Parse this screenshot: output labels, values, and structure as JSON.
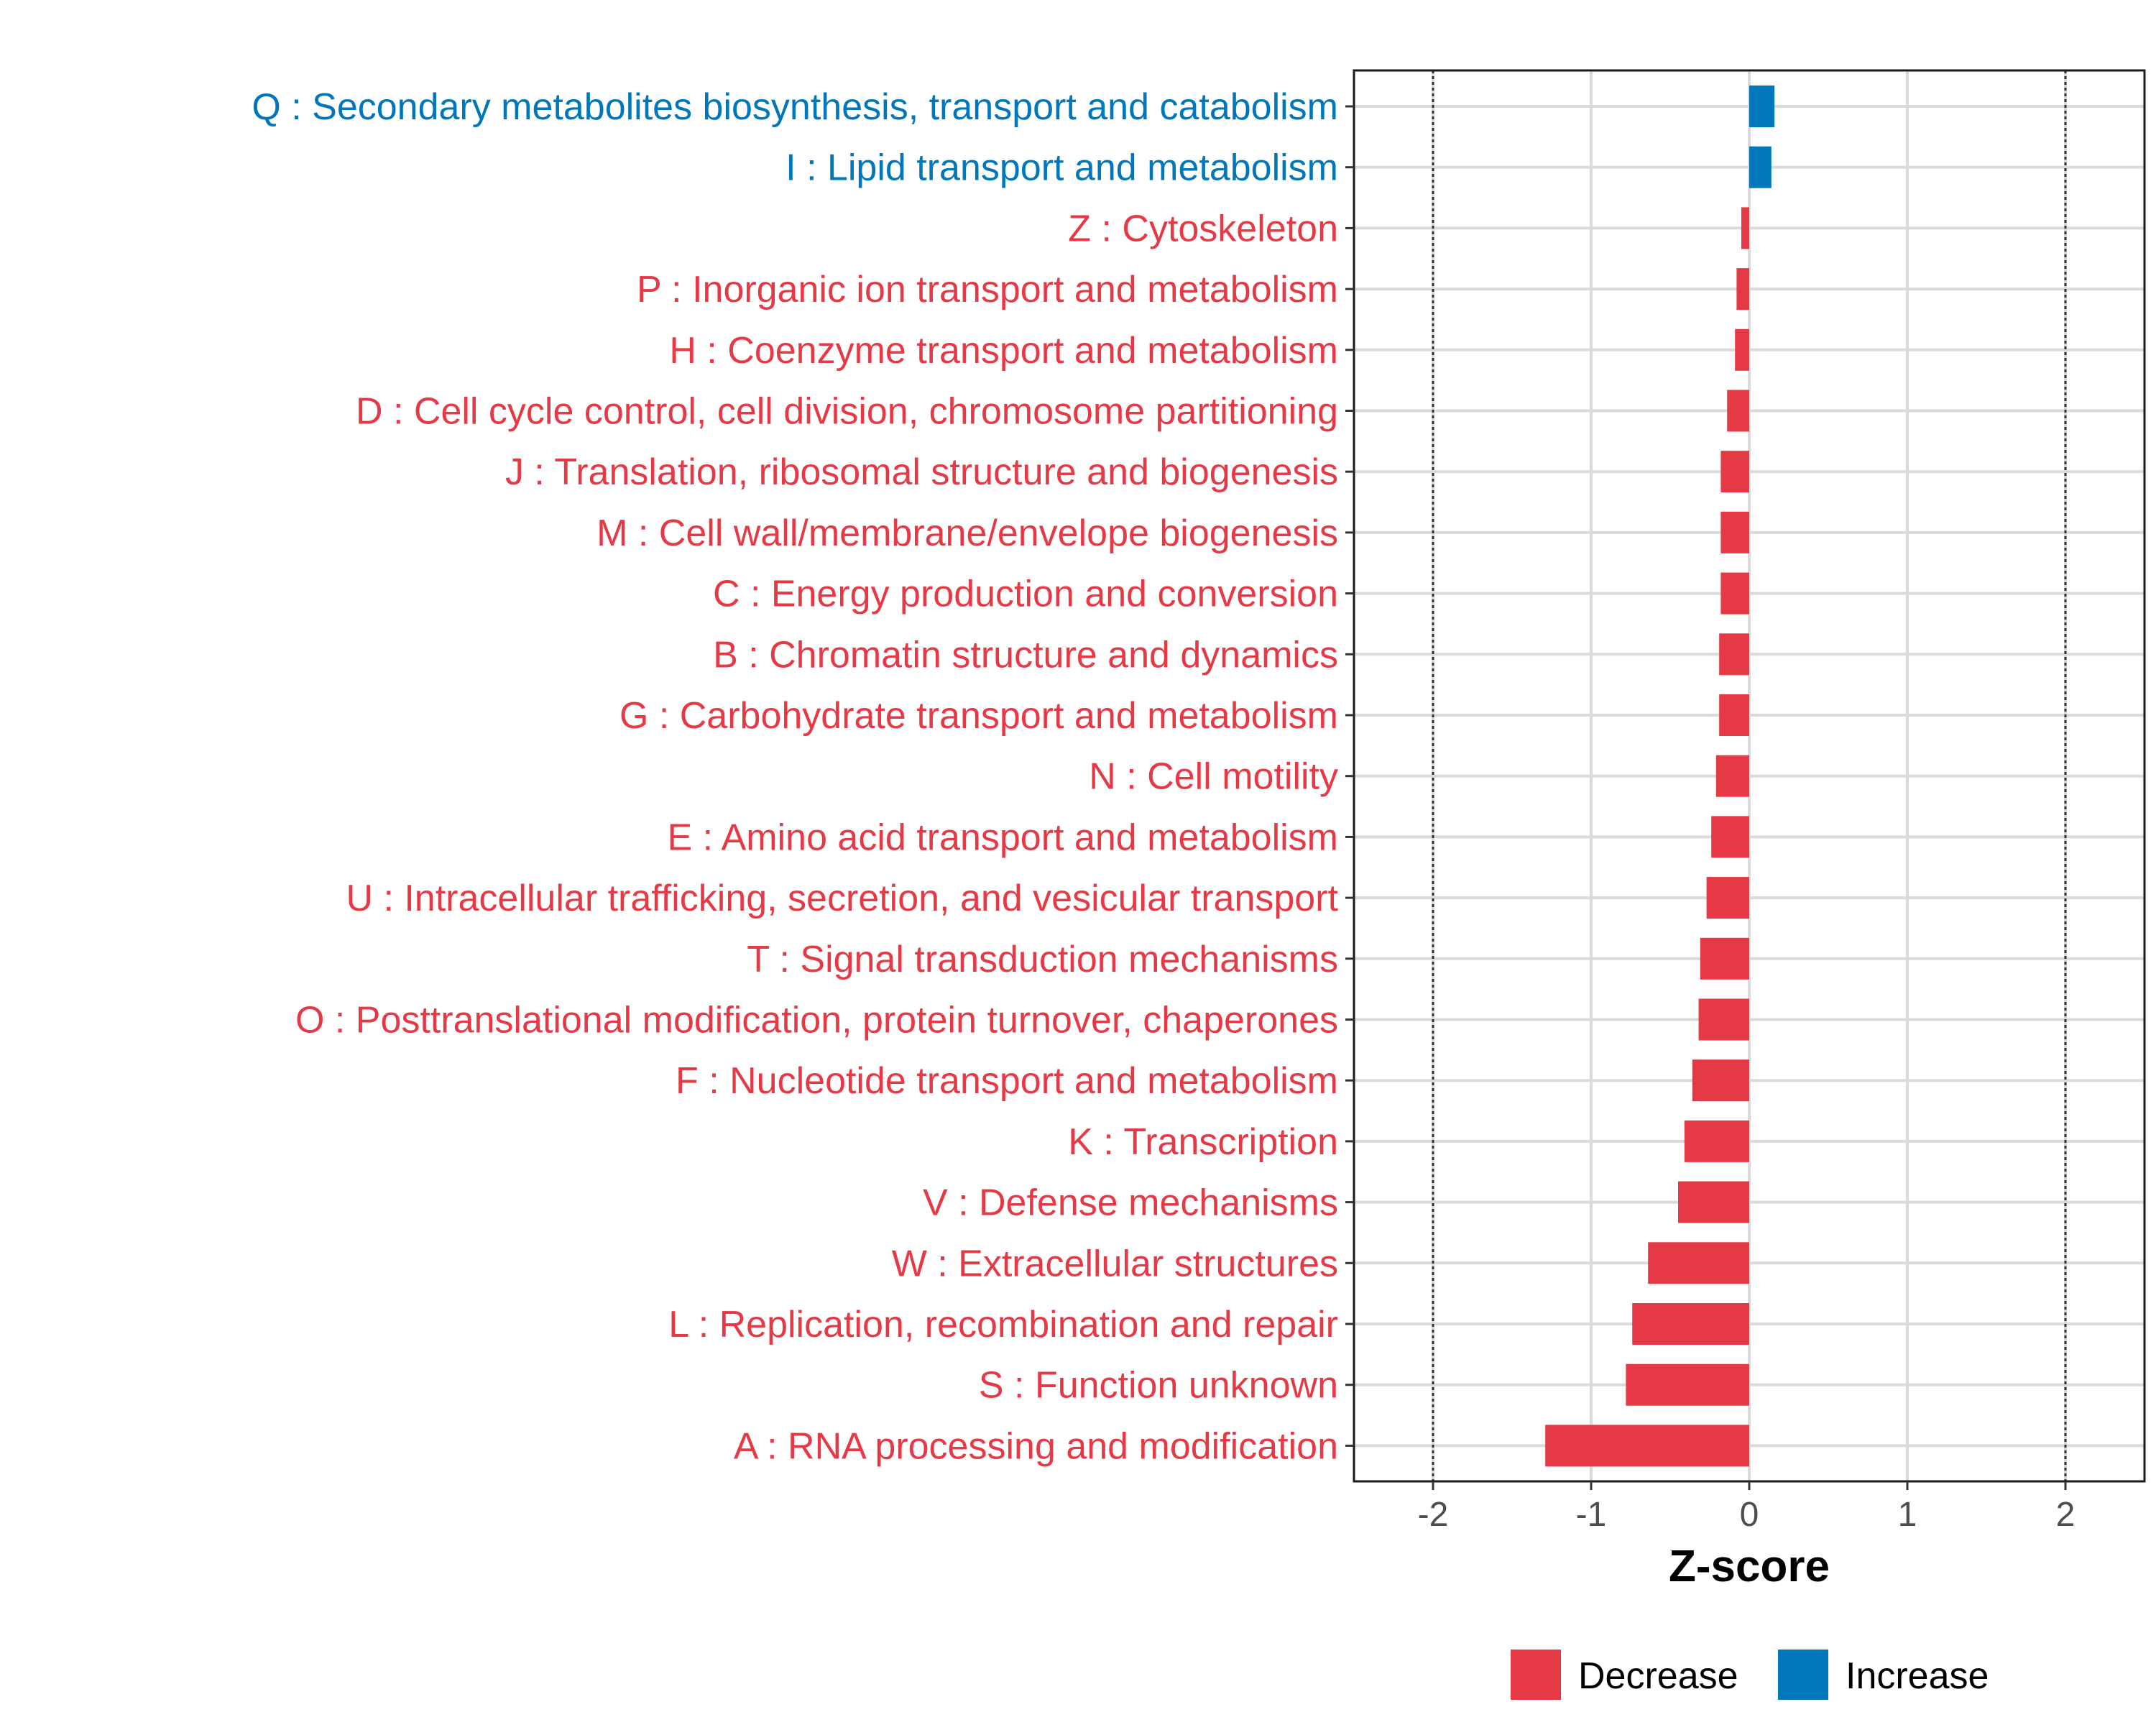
{
  "chart_data": {
    "type": "bar",
    "orientation": "horizontal",
    "title": "",
    "xlabel": "Z-score",
    "ylabel": "",
    "xlim": [
      -2.5,
      2.5
    ],
    "xticks": [
      -2,
      -1,
      0,
      1,
      2
    ],
    "xtick_labels": [
      "-2",
      "-1",
      "0",
      "1",
      "2"
    ],
    "reference_lines": [
      -2,
      2
    ],
    "grid": true,
    "legend_position": "bottom-right",
    "colors": {
      "Decrease": "#E63946",
      "Increase": "#0077BB"
    },
    "legend": [
      {
        "name": "Decrease",
        "color": "#E63946"
      },
      {
        "name": "Increase",
        "color": "#0077BB"
      }
    ],
    "categories": [
      "Q : Secondary metabolites biosynthesis, transport and catabolism",
      "I : Lipid transport and metabolism",
      "Z : Cytoskeleton",
      "P : Inorganic ion transport and metabolism",
      "H : Coenzyme transport and metabolism",
      "D : Cell cycle control, cell division, chromosome partitioning",
      "J : Translation, ribosomal structure and biogenesis",
      "M : Cell wall/membrane/envelope biogenesis",
      "C : Energy production and conversion",
      "B : Chromatin structure and dynamics",
      "G : Carbohydrate transport and metabolism",
      "N : Cell motility",
      "E : Amino acid transport and metabolism",
      "U : Intracellular trafficking, secretion, and vesicular transport",
      "T : Signal transduction mechanisms",
      "O : Posttranslational modification, protein turnover, chaperones",
      "F : Nucleotide transport and metabolism",
      "K : Transcription",
      "V : Defense mechanisms",
      "W : Extracellular structures",
      "L : Replication, recombination and repair",
      "S : Function unknown",
      "A : RNA processing and modification"
    ],
    "values": [
      0.16,
      0.14,
      -0.05,
      -0.08,
      -0.09,
      -0.14,
      -0.18,
      -0.18,
      -0.18,
      -0.19,
      -0.19,
      -0.21,
      -0.24,
      -0.27,
      -0.31,
      -0.32,
      -0.36,
      -0.41,
      -0.45,
      -0.64,
      -0.74,
      -0.78,
      -1.29
    ],
    "groups": [
      "Increase",
      "Increase",
      "Decrease",
      "Decrease",
      "Decrease",
      "Decrease",
      "Decrease",
      "Decrease",
      "Decrease",
      "Decrease",
      "Decrease",
      "Decrease",
      "Decrease",
      "Decrease",
      "Decrease",
      "Decrease",
      "Decrease",
      "Decrease",
      "Decrease",
      "Decrease",
      "Decrease",
      "Decrease",
      "Decrease"
    ]
  }
}
